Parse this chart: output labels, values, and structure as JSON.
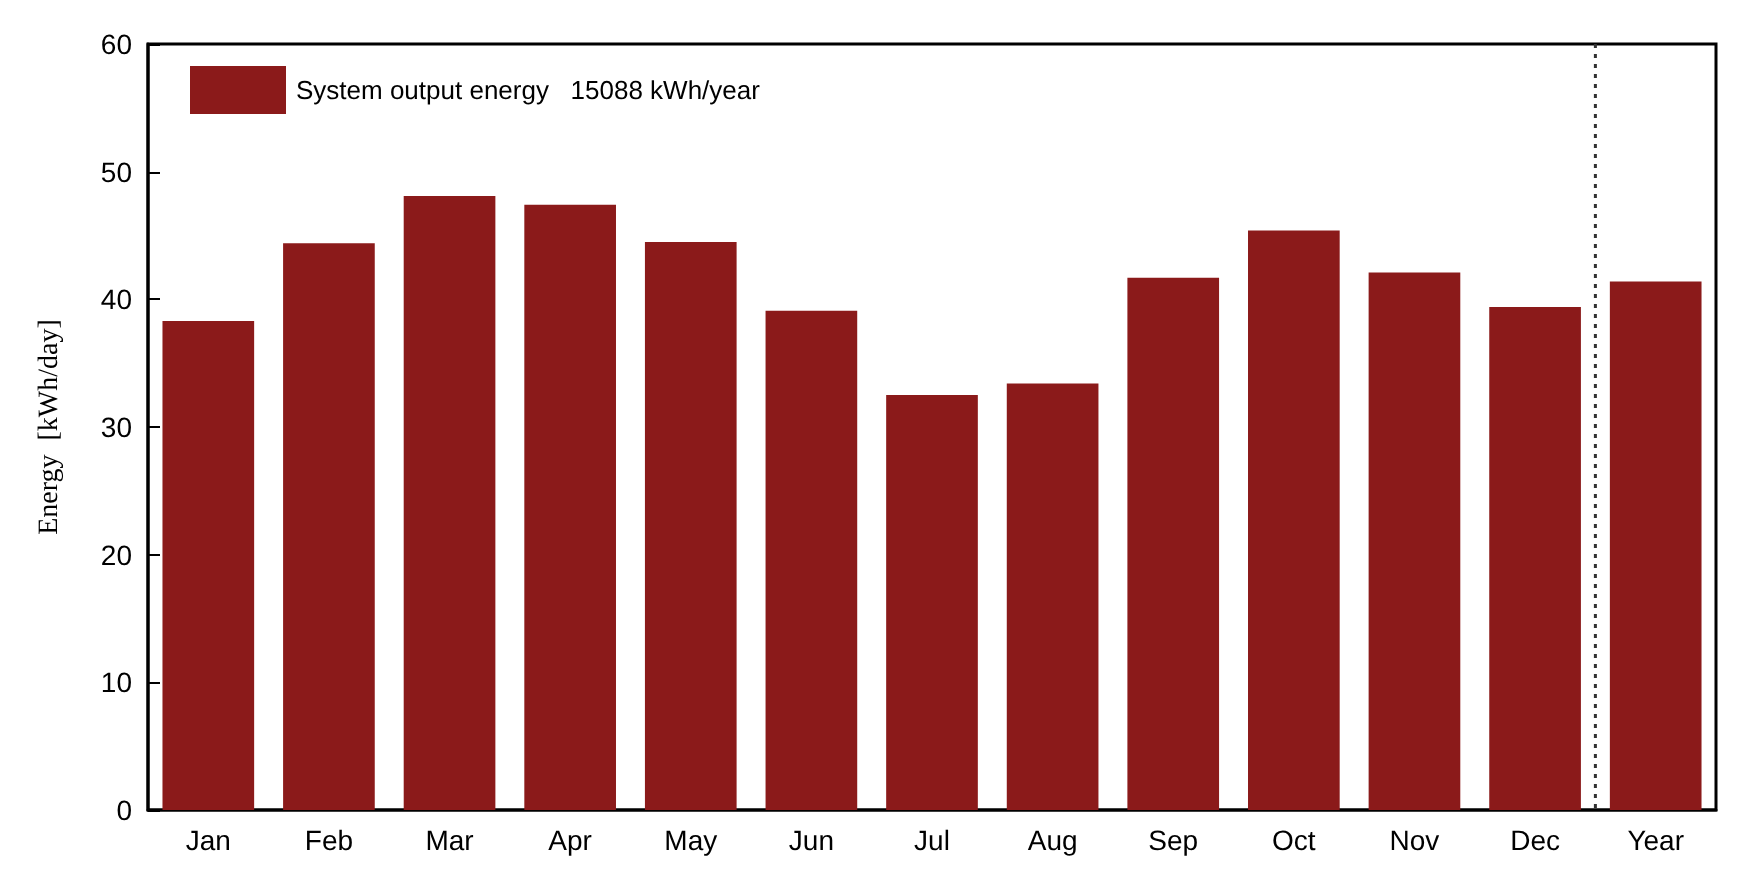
{
  "chart_data": {
    "type": "bar",
    "ylabel": "Energy  [kWh/day]",
    "categories": [
      "Jan",
      "Feb",
      "Mar",
      "Apr",
      "May",
      "Jun",
      "Jul",
      "Aug",
      "Sep",
      "Oct",
      "Nov",
      "Dec",
      "Year"
    ],
    "series": [
      {
        "name": "System output energy   15088 kWh/year",
        "color": "#8b1a1a",
        "values": [
          38.3,
          44.4,
          48.1,
          47.4,
          44.5,
          39.1,
          32.5,
          33.4,
          41.7,
          45.4,
          42.1,
          39.4,
          41.4
        ]
      }
    ],
    "ylim": [
      0,
      60
    ],
    "yticks": [
      0,
      10,
      20,
      30,
      40,
      50,
      60
    ],
    "grid": false,
    "legend": "top left"
  }
}
